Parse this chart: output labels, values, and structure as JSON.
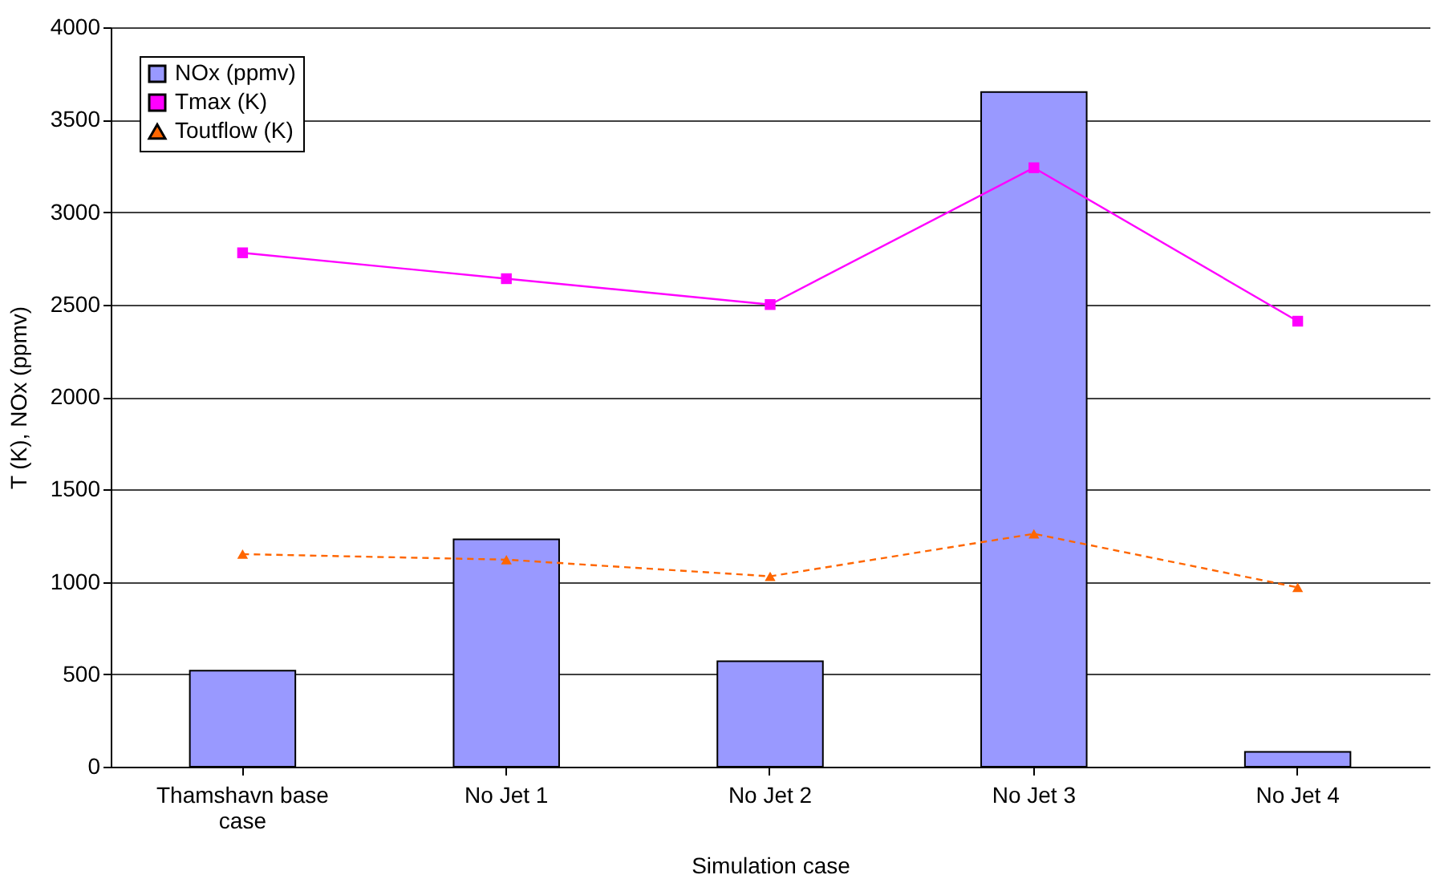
{
  "chart_data": {
    "type": "bar",
    "xlabel": "Simulation case",
    "ylabel": "T (K), NOx (ppmv)",
    "categories": [
      "Thamshavn base case",
      "No Jet 1",
      "No Jet 2",
      "No Jet 3",
      "No Jet 4"
    ],
    "series": [
      {
        "name": "NOx (ppmv)",
        "color": "#9999ff",
        "values": [
          520,
          1230,
          570,
          3650,
          80
        ]
      },
      {
        "name": "Tmax (K)",
        "type": "line",
        "color": "#ff00ff",
        "marker": "square",
        "line_style": "solid",
        "values": [
          2780,
          2640,
          2500,
          3240,
          2410
        ]
      },
      {
        "name": "Toutflow (K)",
        "type": "line",
        "color": "#ff6600",
        "marker": "triangle",
        "line_style": "dashed",
        "values": [
          1150,
          1120,
          1030,
          1260,
          970
        ]
      }
    ],
    "ylim": [
      0,
      4000
    ],
    "yticks": [
      0,
      500,
      1000,
      1500,
      2000,
      2500,
      3000,
      3500,
      4000
    ],
    "grid": "y",
    "legend": "top left"
  }
}
